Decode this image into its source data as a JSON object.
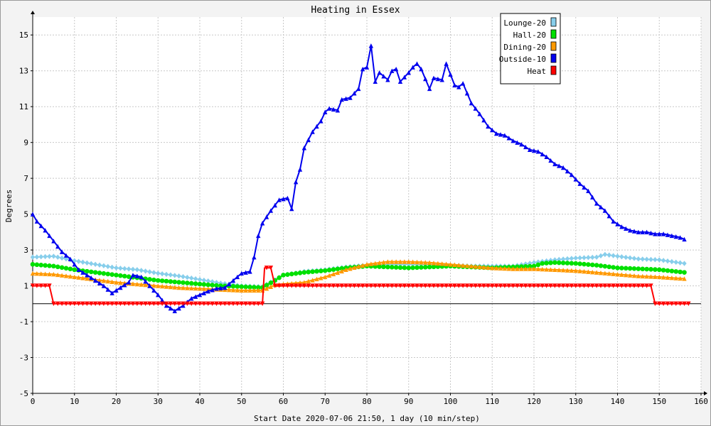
{
  "chart_data": {
    "type": "line",
    "title": "Heating in Essex",
    "xlabel": "Start Date 2020-07-06 21:50, 1 day (10 min/step)",
    "ylabel": "Degrees",
    "xlim": [
      0,
      160
    ],
    "ylim": [
      -5,
      16
    ],
    "x_ticks": [
      0,
      10,
      20,
      30,
      40,
      50,
      60,
      70,
      80,
      90,
      100,
      110,
      120,
      130,
      140,
      150,
      160
    ],
    "y_ticks": [
      -5,
      -3,
      -1,
      1,
      3,
      5,
      7,
      9,
      11,
      13,
      15
    ],
    "grid": true,
    "legend_position": "top-right",
    "series": [
      {
        "name": "Lounge-20",
        "color": "#87ceeb",
        "marker": "diamond",
        "points": [
          [
            0,
            2.6
          ],
          [
            5,
            2.65
          ],
          [
            10,
            2.4
          ],
          [
            15,
            2.2
          ],
          [
            20,
            2.0
          ],
          [
            25,
            1.9
          ],
          [
            30,
            1.7
          ],
          [
            35,
            1.55
          ],
          [
            40,
            1.35
          ],
          [
            45,
            1.15
          ],
          [
            50,
            1.0
          ],
          [
            55,
            0.95
          ],
          [
            60,
            1.6
          ],
          [
            65,
            1.8
          ],
          [
            70,
            1.9
          ],
          [
            75,
            2.05
          ],
          [
            80,
            2.15
          ],
          [
            85,
            2.2
          ],
          [
            90,
            2.2
          ],
          [
            95,
            2.2
          ],
          [
            100,
            2.15
          ],
          [
            105,
            2.1
          ],
          [
            110,
            2.1
          ],
          [
            115,
            2.1
          ],
          [
            120,
            2.3
          ],
          [
            125,
            2.45
          ],
          [
            130,
            2.55
          ],
          [
            135,
            2.6
          ],
          [
            137,
            2.75
          ],
          [
            140,
            2.65
          ],
          [
            145,
            2.5
          ],
          [
            150,
            2.45
          ],
          [
            156,
            2.25
          ]
        ]
      },
      {
        "name": "Hall-20",
        "color": "#00e000",
        "marker": "circle",
        "points": [
          [
            0,
            2.2
          ],
          [
            5,
            2.1
          ],
          [
            10,
            1.9
          ],
          [
            15,
            1.75
          ],
          [
            20,
            1.6
          ],
          [
            25,
            1.45
          ],
          [
            30,
            1.3
          ],
          [
            35,
            1.2
          ],
          [
            40,
            1.1
          ],
          [
            45,
            1.0
          ],
          [
            50,
            0.95
          ],
          [
            55,
            0.9
          ],
          [
            58,
            1.3
          ],
          [
            60,
            1.6
          ],
          [
            65,
            1.75
          ],
          [
            70,
            1.85
          ],
          [
            75,
            2.0
          ],
          [
            80,
            2.1
          ],
          [
            85,
            2.05
          ],
          [
            90,
            2.0
          ],
          [
            95,
            2.05
          ],
          [
            100,
            2.1
          ],
          [
            105,
            2.05
          ],
          [
            110,
            2.0
          ],
          [
            115,
            2.05
          ],
          [
            120,
            2.1
          ],
          [
            122,
            2.25
          ],
          [
            125,
            2.3
          ],
          [
            130,
            2.25
          ],
          [
            135,
            2.15
          ],
          [
            140,
            2.0
          ],
          [
            145,
            1.95
          ],
          [
            150,
            1.9
          ],
          [
            156,
            1.75
          ]
        ]
      },
      {
        "name": "Dining-20",
        "color": "#ff9900",
        "marker": "triangle",
        "points": [
          [
            0,
            1.7
          ],
          [
            5,
            1.65
          ],
          [
            10,
            1.5
          ],
          [
            15,
            1.35
          ],
          [
            20,
            1.2
          ],
          [
            25,
            1.1
          ],
          [
            30,
            1.0
          ],
          [
            35,
            0.9
          ],
          [
            40,
            0.85
          ],
          [
            45,
            0.8
          ],
          [
            50,
            0.75
          ],
          [
            55,
            0.75
          ],
          [
            58,
            1.05
          ],
          [
            60,
            1.1
          ],
          [
            65,
            1.2
          ],
          [
            70,
            1.5
          ],
          [
            75,
            1.9
          ],
          [
            80,
            2.2
          ],
          [
            85,
            2.35
          ],
          [
            90,
            2.35
          ],
          [
            95,
            2.3
          ],
          [
            100,
            2.2
          ],
          [
            105,
            2.1
          ],
          [
            110,
            2.0
          ],
          [
            115,
            1.95
          ],
          [
            120,
            1.95
          ],
          [
            125,
            1.9
          ],
          [
            130,
            1.85
          ],
          [
            135,
            1.75
          ],
          [
            140,
            1.65
          ],
          [
            145,
            1.55
          ],
          [
            150,
            1.5
          ],
          [
            156,
            1.4
          ]
        ]
      },
      {
        "name": "Outside-10",
        "color": "#0000ee",
        "marker": "triangle",
        "points": [
          [
            0,
            5.0
          ],
          [
            1,
            4.6
          ],
          [
            3,
            4.1
          ],
          [
            5,
            3.5
          ],
          [
            7,
            2.9
          ],
          [
            9,
            2.5
          ],
          [
            11,
            1.9
          ],
          [
            13,
            1.6
          ],
          [
            15,
            1.3
          ],
          [
            17,
            1.0
          ],
          [
            19,
            0.6
          ],
          [
            21,
            0.9
          ],
          [
            23,
            1.2
          ],
          [
            24,
            1.6
          ],
          [
            26,
            1.5
          ],
          [
            28,
            1.0
          ],
          [
            30,
            0.5
          ],
          [
            32,
            -0.1
          ],
          [
            34,
            -0.4
          ],
          [
            36,
            -0.1
          ],
          [
            38,
            0.3
          ],
          [
            40,
            0.5
          ],
          [
            42,
            0.7
          ],
          [
            44,
            0.85
          ],
          [
            46,
            0.9
          ],
          [
            48,
            1.3
          ],
          [
            50,
            1.7
          ],
          [
            52,
            1.8
          ],
          [
            53,
            2.6
          ],
          [
            54,
            3.8
          ],
          [
            55,
            4.5
          ],
          [
            57,
            5.2
          ],
          [
            59,
            5.8
          ],
          [
            61,
            5.9
          ],
          [
            62,
            5.3
          ],
          [
            63,
            6.8
          ],
          [
            64,
            7.5
          ],
          [
            65,
            8.7
          ],
          [
            67,
            9.6
          ],
          [
            69,
            10.2
          ],
          [
            70,
            10.7
          ],
          [
            71,
            10.9
          ],
          [
            73,
            10.8
          ],
          [
            74,
            11.4
          ],
          [
            76,
            11.5
          ],
          [
            78,
            12.0
          ],
          [
            79,
            13.1
          ],
          [
            80,
            13.2
          ],
          [
            81,
            14.4
          ],
          [
            82,
            12.4
          ],
          [
            83,
            12.9
          ],
          [
            85,
            12.5
          ],
          [
            86,
            13.0
          ],
          [
            87,
            13.1
          ],
          [
            88,
            12.4
          ],
          [
            90,
            12.9
          ],
          [
            91,
            13.2
          ],
          [
            92,
            13.4
          ],
          [
            93,
            13.1
          ],
          [
            95,
            12.0
          ],
          [
            96,
            12.6
          ],
          [
            98,
            12.5
          ],
          [
            99,
            13.4
          ],
          [
            100,
            12.8
          ],
          [
            101,
            12.2
          ],
          [
            102,
            12.1
          ],
          [
            103,
            12.3
          ],
          [
            105,
            11.2
          ],
          [
            107,
            10.6
          ],
          [
            109,
            9.9
          ],
          [
            111,
            9.5
          ],
          [
            113,
            9.4
          ],
          [
            115,
            9.1
          ],
          [
            117,
            8.9
          ],
          [
            119,
            8.6
          ],
          [
            121,
            8.5
          ],
          [
            123,
            8.2
          ],
          [
            125,
            7.8
          ],
          [
            127,
            7.6
          ],
          [
            129,
            7.2
          ],
          [
            131,
            6.7
          ],
          [
            133,
            6.3
          ],
          [
            135,
            5.6
          ],
          [
            137,
            5.2
          ],
          [
            139,
            4.6
          ],
          [
            141,
            4.3
          ],
          [
            143,
            4.1
          ],
          [
            145,
            4.0
          ],
          [
            147,
            4.0
          ],
          [
            149,
            3.9
          ],
          [
            151,
            3.9
          ],
          [
            153,
            3.8
          ],
          [
            155,
            3.7
          ],
          [
            156,
            3.6
          ]
        ]
      },
      {
        "name": "Heat",
        "color": "#ff0000",
        "marker": "triangle-down",
        "points": [
          [
            0,
            1
          ],
          [
            4,
            1
          ],
          [
            5,
            0
          ],
          [
            55,
            0
          ],
          [
            55.5,
            2
          ],
          [
            57,
            2
          ],
          [
            58,
            1
          ],
          [
            148,
            1
          ],
          [
            149,
            0
          ],
          [
            157,
            0
          ]
        ]
      }
    ]
  }
}
